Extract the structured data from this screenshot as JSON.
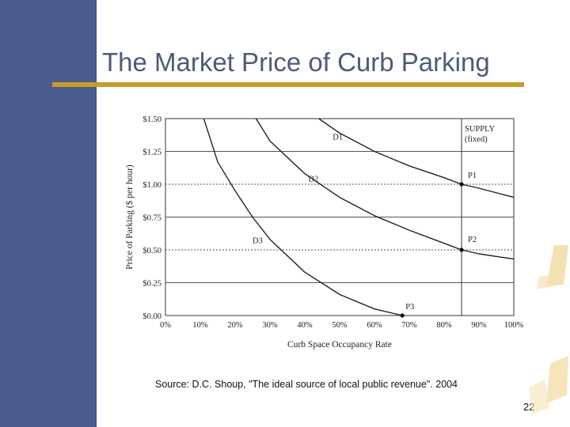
{
  "slide": {
    "title": "The Market Price of Curb Parking",
    "source": "Source: D.C. Shoup, \"The ideal source of local public revenue\". 2004",
    "page_number": "22",
    "colors": {
      "sidebar": "#4a5c8c",
      "accent": "#c99a2e",
      "title": "#4f5a7a"
    }
  },
  "chart_data": {
    "type": "line",
    "title": "",
    "xlabel": "Curb Space Occupancy Rate",
    "ylabel": "Price of Parking ($ per hour)",
    "xlim": [
      0,
      100
    ],
    "ylim": [
      0,
      1.5
    ],
    "x_ticks": [
      "0%",
      "10%",
      "20%",
      "30%",
      "40%",
      "50%",
      "60%",
      "70%",
      "80%",
      "90%",
      "100%"
    ],
    "x_tick_values": [
      0,
      10,
      20,
      30,
      40,
      50,
      60,
      70,
      80,
      90,
      100
    ],
    "y_ticks": [
      "$0.00",
      "$0.25",
      "$0.50",
      "$0.75",
      "$1.00",
      "$1.25",
      "$1.50"
    ],
    "y_tick_values": [
      0,
      0.25,
      0.5,
      0.75,
      1.0,
      1.25,
      1.5
    ],
    "series": [
      {
        "name": "D1",
        "x": [
          44,
          50,
          60,
          70,
          80,
          85,
          90,
          100
        ],
        "y": [
          1.5,
          1.39,
          1.25,
          1.14,
          1.05,
          1.0,
          0.97,
          0.9
        ]
      },
      {
        "name": "D2",
        "x": [
          26,
          30,
          40,
          50,
          60,
          70,
          80,
          85,
          90,
          100
        ],
        "y": [
          1.5,
          1.33,
          1.08,
          0.9,
          0.76,
          0.65,
          0.55,
          0.5,
          0.47,
          0.43
        ]
      },
      {
        "name": "D3",
        "x": [
          11,
          15,
          20,
          25,
          30,
          40,
          50,
          60,
          68
        ],
        "y": [
          1.5,
          1.17,
          0.95,
          0.75,
          0.58,
          0.33,
          0.16,
          0.05,
          0.0
        ]
      }
    ],
    "supply": {
      "label_line1": "SUPPLY",
      "label_line2": "(fixed)",
      "x": 85
    },
    "points": [
      {
        "name": "P1",
        "x": 85,
        "y": 1.0
      },
      {
        "name": "P2",
        "x": 85,
        "y": 0.5
      },
      {
        "name": "P3",
        "x": 68,
        "y": 0.0
      }
    ],
    "dotted_levels": [
      1.0,
      0.5
    ]
  }
}
